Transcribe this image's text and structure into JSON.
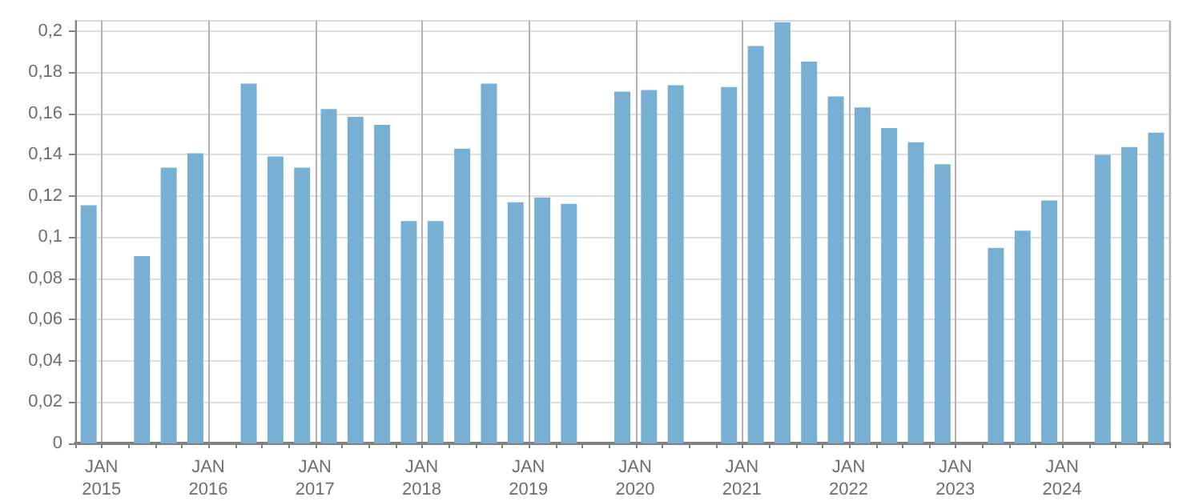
{
  "chart_data": {
    "type": "bar",
    "categories": [
      "JAN\n2015",
      null,
      null,
      null,
      "JAN\n2016",
      null,
      null,
      null,
      "JAN\n2017",
      null,
      null,
      null,
      "JAN\n2018",
      null,
      null,
      null,
      "JAN\n2019",
      null,
      null,
      null,
      "JAN\n2020",
      null,
      null,
      null,
      "JAN\n2021",
      null,
      null,
      null,
      "JAN\n2022",
      null,
      null,
      null,
      "JAN\n2023",
      null,
      null,
      null,
      "JAN\n2024",
      null,
      null,
      null,
      null
    ],
    "values": [
      0.1155,
      null,
      0.0909,
      0.1338,
      0.1407,
      null,
      0.1745,
      0.1392,
      0.1338,
      0.1622,
      0.1584,
      0.1545,
      0.1078,
      0.1078,
      0.143,
      0.1745,
      0.117,
      0.1193,
      0.1162,
      null,
      0.1706,
      0.1714,
      0.1737,
      null,
      0.1729,
      0.1928,
      0.2043,
      0.1852,
      0.1683,
      0.163,
      0.153,
      0.1461,
      0.1354,
      null,
      0.0948,
      0.1032,
      0.1178,
      null,
      0.14,
      0.1438,
      0.1507
    ],
    "color": "#77b0d2",
    "ylim": [
      0,
      0.205
    ],
    "yticks": [
      0,
      {
        "value": 0.02,
        "label": "0,02"
      },
      {
        "value": 0.04,
        "label": "0,04"
      },
      {
        "value": 0.06,
        "label": "0,06"
      },
      {
        "value": 0.08,
        "label": "0,08"
      },
      {
        "value": 0.1,
        "label": "0,1"
      },
      {
        "value": 0.12,
        "label": "0,12"
      },
      {
        "value": 0.14,
        "label": "0,14"
      },
      {
        "value": 0.16,
        "label": "0,16"
      },
      {
        "value": 0.18,
        "label": "0,18"
      },
      {
        "value": 0.2,
        "label": "0,2"
      }
    ],
    "grid": true
  }
}
